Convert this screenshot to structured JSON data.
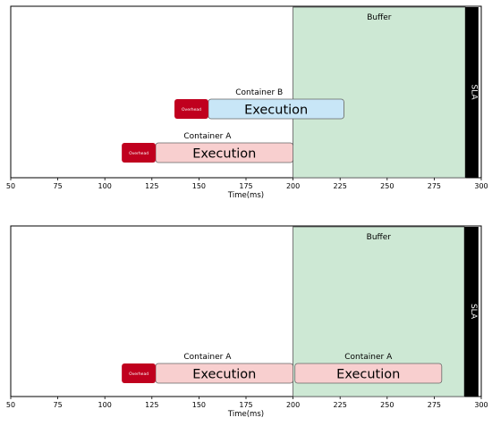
{
  "chart_data": [
    {
      "type": "gantt",
      "xlabel": "Time(ms)",
      "xlim": [
        50,
        300
      ],
      "xticks": [
        50,
        75,
        100,
        125,
        150,
        175,
        200,
        225,
        250,
        275,
        300
      ],
      "buffer": {
        "label": "Buffer",
        "start": 200,
        "end": 291.5,
        "color": "#cde8d4"
      },
      "sla": {
        "label": "SLA",
        "start": 291.5,
        "end": 298.5,
        "color": "#000000"
      },
      "containers": [
        {
          "label": "Container B",
          "lane": 1,
          "overhead_label": "Overhead",
          "overhead_start": 137,
          "overhead_end": 155,
          "execution_label": "Execution",
          "execution_start": 155,
          "execution_end": 227,
          "execution_color": "#c8e6f7",
          "overhead_color": "#c0001e"
        },
        {
          "label": "Container A",
          "lane": 0,
          "overhead_label": "Overhead",
          "overhead_start": 109,
          "overhead_end": 127,
          "execution_label": "Execution",
          "execution_start": 127,
          "execution_end": 200,
          "execution_color": "#f8cfcf",
          "overhead_color": "#c0001e"
        }
      ]
    },
    {
      "type": "gantt",
      "xlabel": "Time(ms)",
      "xlim": [
        50,
        300
      ],
      "xticks": [
        50,
        75,
        100,
        125,
        150,
        175,
        200,
        225,
        250,
        275,
        300
      ],
      "buffer": {
        "label": "Buffer",
        "start": 200,
        "end": 291,
        "color": "#cde8d4"
      },
      "sla": {
        "label": "SLA",
        "start": 291,
        "end": 298.5,
        "color": "#000000"
      },
      "containers": [
        {
          "label": "Container A",
          "lane": 0,
          "overhead_label": "Overhead",
          "overhead_start": 109,
          "overhead_end": 127,
          "execution_label": "Execution",
          "execution_start": 127,
          "execution_end": 200,
          "execution_color": "#f8cfcf",
          "overhead_color": "#c0001e"
        },
        {
          "label": "Container A",
          "lane": 0,
          "overhead_label": "",
          "overhead_start": null,
          "overhead_end": null,
          "execution_label": "Execution",
          "execution_start": 201,
          "execution_end": 279,
          "execution_color": "#f8cfcf",
          "overhead_color": "#c0001e"
        }
      ]
    }
  ]
}
